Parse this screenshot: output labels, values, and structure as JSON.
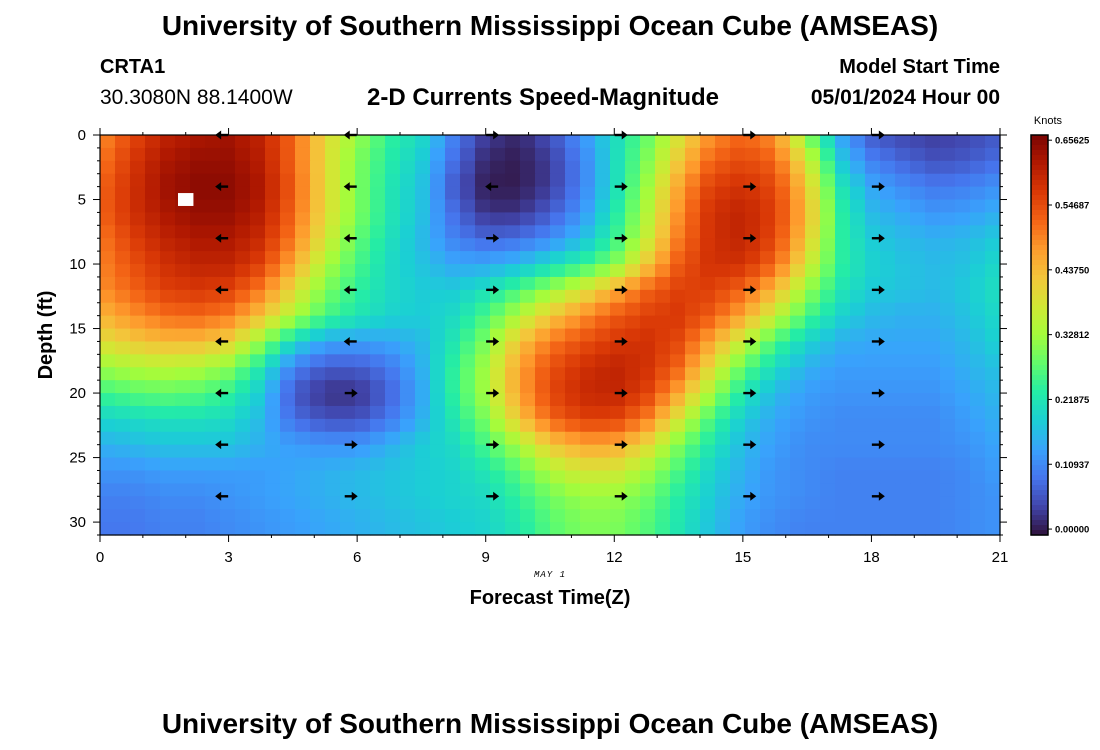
{
  "header": {
    "title": "University of Southern Mississippi Ocean Cube (AMSEAS)",
    "station": "CRTA1",
    "coordinates": "30.3080N  88.1400W",
    "chart_title": "2-D Currents Speed-Magnitude",
    "model_start_label": "Model Start Time",
    "model_start_value": "05/01/2024 Hour 00"
  },
  "footer": {
    "title": "University of Southern Mississippi Ocean Cube (AMSEAS)"
  },
  "chart_data": {
    "type": "heatmap",
    "title": "2-D Currents Speed-Magnitude",
    "xlabel": "Forecast Time(Z)",
    "ylabel": "Depth (ft)",
    "date_label": "MAY 1",
    "xlim": [
      0,
      21
    ],
    "ylim": [
      0,
      31
    ],
    "xticks": [
      0,
      3,
      6,
      9,
      12,
      15,
      18,
      21
    ],
    "yticks": [
      0,
      5,
      10,
      15,
      20,
      25,
      30
    ],
    "colorbar": {
      "unit": "Knots",
      "min": -0.01,
      "max": 0.665,
      "ticks": [
        0.65625,
        0.54687,
        0.4375,
        0.32812,
        0.21875,
        0.10937,
        0.0
      ],
      "tick_labels": [
        "0.65625",
        "0.54687",
        "0.43750",
        "0.32812",
        "0.21875",
        "0.10937",
        "0.00000"
      ],
      "colors": [
        "#30123b",
        "#4145ab",
        "#4675ed",
        "#39a2fc",
        "#1bcfd4",
        "#24eca6",
        "#61fc6c",
        "#a4fc3b",
        "#d1e834",
        "#f3c63a",
        "#fe9b2d",
        "#f36315",
        "#d93806",
        "#b11901",
        "#7a0403"
      ]
    },
    "grid_hours": [
      0,
      0.75,
      1.5,
      2.25,
      3,
      3.75,
      4.5,
      5.25,
      6,
      6.75,
      7.5,
      8.25,
      9,
      9.75,
      10.5,
      11.25,
      12,
      12.75,
      13.5,
      14.25,
      15,
      15.75,
      16.5,
      17.25,
      18,
      18.75,
      19.5,
      20.25,
      21
    ],
    "grid_depths_ft": [
      0,
      2,
      4,
      6,
      8,
      10,
      12,
      14,
      16,
      18,
      20,
      22,
      24,
      26,
      28,
      30
    ],
    "speed_knots_by_depth": [
      [
        0.48,
        0.55,
        0.6,
        0.62,
        0.63,
        0.6,
        0.52,
        0.4,
        0.32,
        0.24,
        0.2,
        0.1,
        0.03,
        0.01,
        0.05,
        0.12,
        0.2,
        0.28,
        0.38,
        0.48,
        0.52,
        0.48,
        0.3,
        0.14,
        0.06,
        0.04,
        0.03,
        0.04,
        0.06
      ],
      [
        0.5,
        0.57,
        0.62,
        0.64,
        0.64,
        0.61,
        0.52,
        0.4,
        0.3,
        0.23,
        0.18,
        0.08,
        0.01,
        0.0,
        0.03,
        0.1,
        0.2,
        0.3,
        0.42,
        0.52,
        0.55,
        0.52,
        0.38,
        0.18,
        0.1,
        0.07,
        0.05,
        0.06,
        0.08
      ],
      [
        0.52,
        0.58,
        0.63,
        0.65,
        0.65,
        0.62,
        0.53,
        0.4,
        0.3,
        0.22,
        0.17,
        0.06,
        0.0,
        0.0,
        0.03,
        0.1,
        0.2,
        0.32,
        0.46,
        0.56,
        0.58,
        0.55,
        0.42,
        0.22,
        0.14,
        0.11,
        0.09,
        0.1,
        0.12
      ],
      [
        0.52,
        0.58,
        0.62,
        0.64,
        0.64,
        0.61,
        0.52,
        0.4,
        0.3,
        0.22,
        0.17,
        0.08,
        0.02,
        0.02,
        0.06,
        0.12,
        0.22,
        0.34,
        0.48,
        0.58,
        0.6,
        0.56,
        0.44,
        0.24,
        0.16,
        0.14,
        0.12,
        0.13,
        0.15
      ],
      [
        0.5,
        0.56,
        0.6,
        0.62,
        0.62,
        0.59,
        0.5,
        0.38,
        0.28,
        0.21,
        0.16,
        0.1,
        0.07,
        0.08,
        0.11,
        0.16,
        0.24,
        0.36,
        0.5,
        0.58,
        0.6,
        0.55,
        0.42,
        0.24,
        0.18,
        0.16,
        0.15,
        0.16,
        0.18
      ],
      [
        0.49,
        0.54,
        0.58,
        0.6,
        0.6,
        0.56,
        0.46,
        0.34,
        0.26,
        0.2,
        0.17,
        0.14,
        0.14,
        0.16,
        0.2,
        0.24,
        0.3,
        0.42,
        0.53,
        0.58,
        0.58,
        0.52,
        0.38,
        0.24,
        0.19,
        0.17,
        0.16,
        0.17,
        0.2
      ],
      [
        0.48,
        0.52,
        0.56,
        0.57,
        0.56,
        0.5,
        0.4,
        0.3,
        0.24,
        0.2,
        0.18,
        0.18,
        0.21,
        0.26,
        0.32,
        0.38,
        0.45,
        0.52,
        0.56,
        0.56,
        0.52,
        0.44,
        0.32,
        0.22,
        0.18,
        0.17,
        0.16,
        0.18,
        0.21
      ],
      [
        0.44,
        0.48,
        0.51,
        0.52,
        0.5,
        0.43,
        0.34,
        0.26,
        0.22,
        0.19,
        0.18,
        0.2,
        0.26,
        0.34,
        0.42,
        0.48,
        0.53,
        0.56,
        0.57,
        0.53,
        0.46,
        0.36,
        0.26,
        0.19,
        0.16,
        0.15,
        0.15,
        0.17,
        0.2
      ],
      [
        0.39,
        0.42,
        0.44,
        0.44,
        0.41,
        0.32,
        0.2,
        0.14,
        0.13,
        0.14,
        0.16,
        0.22,
        0.3,
        0.42,
        0.5,
        0.54,
        0.57,
        0.58,
        0.55,
        0.46,
        0.36,
        0.26,
        0.19,
        0.15,
        0.14,
        0.14,
        0.14,
        0.16,
        0.19
      ],
      [
        0.32,
        0.34,
        0.35,
        0.34,
        0.31,
        0.22,
        0.1,
        0.06,
        0.06,
        0.09,
        0.15,
        0.24,
        0.33,
        0.46,
        0.54,
        0.58,
        0.6,
        0.58,
        0.52,
        0.4,
        0.28,
        0.2,
        0.15,
        0.13,
        0.13,
        0.13,
        0.13,
        0.15,
        0.17
      ],
      [
        0.25,
        0.27,
        0.28,
        0.27,
        0.24,
        0.18,
        0.06,
        0.02,
        0.02,
        0.07,
        0.14,
        0.24,
        0.33,
        0.46,
        0.55,
        0.59,
        0.6,
        0.56,
        0.46,
        0.33,
        0.22,
        0.16,
        0.13,
        0.12,
        0.12,
        0.12,
        0.12,
        0.14,
        0.16
      ],
      [
        0.19,
        0.2,
        0.21,
        0.21,
        0.2,
        0.16,
        0.08,
        0.05,
        0.05,
        0.09,
        0.15,
        0.22,
        0.3,
        0.42,
        0.52,
        0.56,
        0.56,
        0.5,
        0.38,
        0.26,
        0.18,
        0.14,
        0.12,
        0.11,
        0.11,
        0.11,
        0.11,
        0.13,
        0.15
      ],
      [
        0.15,
        0.16,
        0.17,
        0.17,
        0.17,
        0.15,
        0.13,
        0.12,
        0.12,
        0.15,
        0.18,
        0.2,
        0.26,
        0.33,
        0.42,
        0.46,
        0.46,
        0.4,
        0.3,
        0.22,
        0.16,
        0.13,
        0.11,
        0.11,
        0.11,
        0.11,
        0.11,
        0.12,
        0.14
      ],
      [
        0.12,
        0.12,
        0.13,
        0.13,
        0.13,
        0.13,
        0.14,
        0.15,
        0.16,
        0.17,
        0.18,
        0.19,
        0.22,
        0.27,
        0.34,
        0.38,
        0.38,
        0.33,
        0.26,
        0.19,
        0.15,
        0.12,
        0.11,
        0.1,
        0.1,
        0.1,
        0.1,
        0.11,
        0.13
      ],
      [
        0.1,
        0.1,
        0.11,
        0.11,
        0.12,
        0.13,
        0.14,
        0.15,
        0.16,
        0.17,
        0.18,
        0.19,
        0.2,
        0.24,
        0.29,
        0.32,
        0.32,
        0.29,
        0.23,
        0.18,
        0.14,
        0.12,
        0.11,
        0.1,
        0.1,
        0.1,
        0.1,
        0.11,
        0.12
      ],
      [
        0.09,
        0.09,
        0.1,
        0.1,
        0.11,
        0.12,
        0.13,
        0.14,
        0.15,
        0.16,
        0.17,
        0.18,
        0.19,
        0.22,
        0.27,
        0.3,
        0.3,
        0.27,
        0.22,
        0.17,
        0.13,
        0.11,
        0.1,
        0.1,
        0.1,
        0.1,
        0.1,
        0.11,
        0.12
      ]
    ],
    "missing_cells": [
      {
        "hour": 2,
        "depth_ft": 5
      }
    ],
    "direction_arrows": {
      "hours": [
        2.85,
        5.85,
        9.15,
        12.15,
        15.15,
        18.15
      ],
      "depths_ft": [
        0,
        4,
        8,
        12,
        16,
        20,
        24,
        28
      ],
      "directions": [
        [
          "left",
          "left",
          "right",
          "right",
          "right",
          "right"
        ],
        [
          "left",
          "left",
          "left",
          "right",
          "right",
          "right"
        ],
        [
          "left",
          "left",
          "right",
          "right",
          "right",
          "right"
        ],
        [
          "left",
          "left",
          "right",
          "right",
          "right",
          "right"
        ],
        [
          "left",
          "left",
          "right",
          "right",
          "right",
          "right"
        ],
        [
          "left",
          "right",
          "right",
          "right",
          "right",
          "right"
        ],
        [
          "left",
          "right",
          "right",
          "right",
          "right",
          "right"
        ],
        [
          "left",
          "right",
          "right",
          "right",
          "right",
          "right"
        ]
      ]
    }
  }
}
